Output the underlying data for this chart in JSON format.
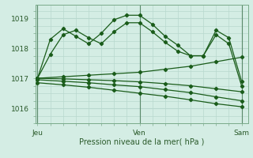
{
  "title": "",
  "xlabel": "Pression niveau de la mer( hPa )",
  "ylabel": "",
  "background_color": "#d4ede4",
  "grid_color": "#b8d8ce",
  "line_color": "#1a5c1a",
  "xtick_labels": [
    "Jeu",
    "Ven",
    "Sam"
  ],
  "xtick_positions": [
    0,
    24,
    48
  ],
  "ytick_labels": [
    "1016",
    "1017",
    "1018",
    "1019"
  ],
  "ytick_positions": [
    1016,
    1017,
    1018,
    1019
  ],
  "ylim": [
    1015.55,
    1019.45
  ],
  "xlim": [
    -0.5,
    49.5
  ],
  "vlines": [
    0,
    24,
    48
  ],
  "lines": [
    {
      "x": [
        0,
        3,
        6,
        9,
        12,
        15,
        18,
        21,
        24,
        27,
        30,
        33,
        36,
        39,
        42,
        45,
        48
      ],
      "y": [
        1017.0,
        1018.3,
        1018.65,
        1018.4,
        1018.15,
        1018.5,
        1018.95,
        1019.1,
        1019.1,
        1018.8,
        1018.4,
        1018.1,
        1017.75,
        1017.75,
        1018.6,
        1018.35,
        1016.9
      ]
    },
    {
      "x": [
        0,
        3,
        6,
        9,
        12,
        15,
        18,
        21,
        24,
        27,
        30,
        33,
        36,
        39,
        42,
        45,
        48
      ],
      "y": [
        1017.0,
        1017.8,
        1018.45,
        1018.6,
        1018.35,
        1018.15,
        1018.55,
        1018.85,
        1018.85,
        1018.55,
        1018.2,
        1017.9,
        1017.75,
        1017.75,
        1018.45,
        1018.15,
        1016.75
      ]
    },
    {
      "x": [
        0,
        6,
        12,
        18,
        24,
        30,
        36,
        42,
        48
      ],
      "y": [
        1017.0,
        1017.05,
        1017.1,
        1017.15,
        1017.2,
        1017.3,
        1017.4,
        1017.55,
        1017.7
      ]
    },
    {
      "x": [
        0,
        6,
        12,
        18,
        24,
        30,
        36,
        42,
        48
      ],
      "y": [
        1017.0,
        1016.98,
        1016.95,
        1016.92,
        1016.88,
        1016.82,
        1016.75,
        1016.65,
        1016.55
      ]
    },
    {
      "x": [
        0,
        6,
        12,
        18,
        24,
        30,
        36,
        42,
        48
      ],
      "y": [
        1016.95,
        1016.9,
        1016.85,
        1016.78,
        1016.72,
        1016.62,
        1016.52,
        1016.38,
        1016.25
      ]
    },
    {
      "x": [
        0,
        6,
        12,
        18,
        24,
        30,
        36,
        42,
        48
      ],
      "y": [
        1016.85,
        1016.78,
        1016.7,
        1016.6,
        1016.5,
        1016.4,
        1016.28,
        1016.15,
        1016.05
      ]
    }
  ]
}
